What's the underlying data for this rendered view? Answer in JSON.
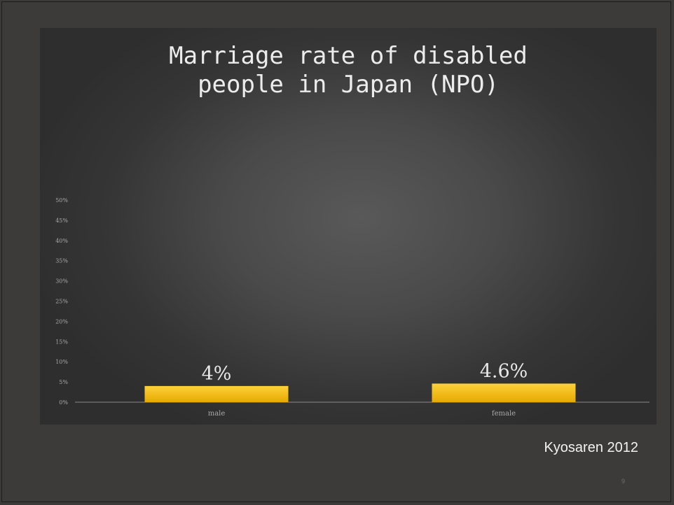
{
  "slide": {
    "title": "Marriage rate of disabled\npeople in Japan  (NPO)",
    "source": "Kyosaren 2012",
    "page_number": "9"
  },
  "colors": {
    "bar_top": "#fcd23a",
    "bar_bottom": "#e8a800",
    "axis_text": "#a9a9a9",
    "label_text": "#e8e8e8"
  },
  "chart_data": {
    "type": "bar",
    "title": "Marriage rate of disabled people in Japan  (NPO)",
    "categories": [
      "male",
      "female"
    ],
    "series": [
      {
        "values": [
          4,
          4.6
        ],
        "data_labels": [
          "4%",
          "4.6%"
        ]
      }
    ],
    "ylim": [
      0,
      50
    ],
    "yticks": [
      0,
      5,
      10,
      15,
      20,
      25,
      30,
      35,
      40,
      45,
      50
    ],
    "ytick_labels": [
      "0%",
      "5%",
      "10%",
      "15%",
      "20%",
      "25%",
      "30%",
      "35%",
      "40%",
      "45%",
      "50%"
    ],
    "xlabel": "",
    "ylabel": "",
    "grid": false,
    "legend": "none"
  }
}
